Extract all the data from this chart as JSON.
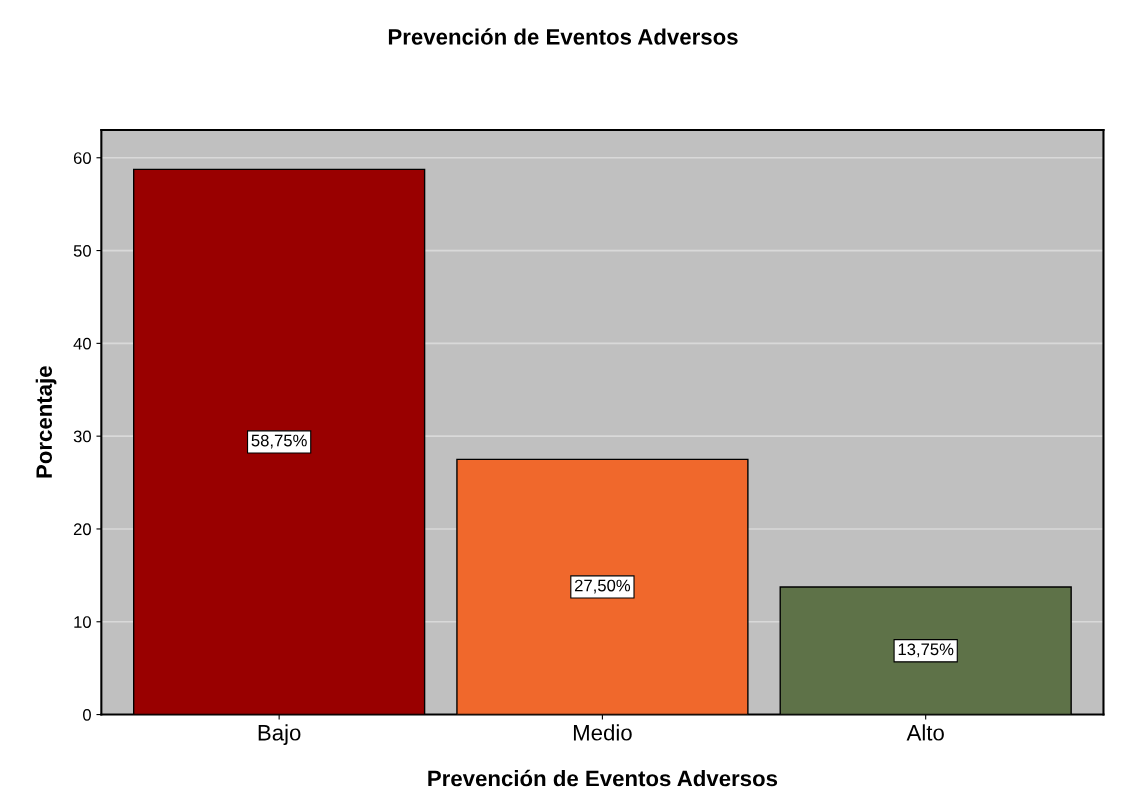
{
  "chart_data": {
    "type": "bar",
    "title": "Prevención de Eventos Adversos",
    "xlabel": "Prevención de Eventos Adversos",
    "ylabel": "Porcentaje",
    "categories": [
      "Bajo",
      "Medio",
      "Alto"
    ],
    "values": [
      58.75,
      27.5,
      13.75
    ],
    "colors": [
      "#990000",
      "#f0682c",
      "#5e7248"
    ],
    "value_labels": [
      "58,75%",
      "27,50%",
      "13,75%"
    ],
    "ylim": [
      0,
      63
    ],
    "yticks": [
      0,
      10,
      20,
      30,
      40,
      50,
      60
    ],
    "grid": "y"
  }
}
